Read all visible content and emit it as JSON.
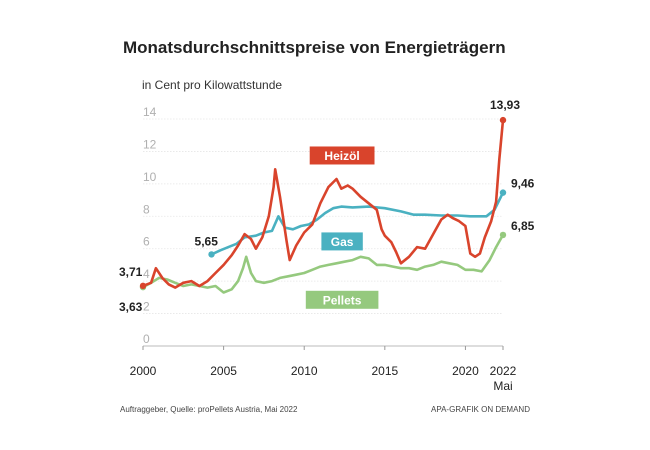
{
  "chart_data": {
    "type": "line",
    "title": "Monatsdurchschnittspreise von Energieträgern",
    "ylabel": "in Cent pro Kilowattstunde",
    "xlabel": "",
    "ylim": [
      0,
      14
    ],
    "yticks": [
      0,
      2,
      4,
      6,
      8,
      10,
      12,
      14
    ],
    "x_ticks": [
      "2000",
      "2005",
      "2010",
      "2015",
      "2020",
      "2022"
    ],
    "x_tick_values": [
      2000,
      2005,
      2010,
      2015,
      2020,
      2022.33
    ],
    "x_sublabel": "Mai",
    "xlim": [
      2000,
      2022.33
    ],
    "series": [
      {
        "name": "Heizöl",
        "color": "#d9442c",
        "points": [
          [
            2000,
            3.71
          ],
          [
            2000.5,
            3.9
          ],
          [
            2000.8,
            4.8
          ],
          [
            2001.2,
            4.2
          ],
          [
            2001.6,
            3.8
          ],
          [
            2002.0,
            3.6
          ],
          [
            2002.5,
            3.9
          ],
          [
            2003.0,
            4.0
          ],
          [
            2003.5,
            3.7
          ],
          [
            2004.0,
            4.0
          ],
          [
            2004.5,
            4.5
          ],
          [
            2005.0,
            5.0
          ],
          [
            2005.5,
            5.6
          ],
          [
            2005.9,
            6.2
          ],
          [
            2006.3,
            6.9
          ],
          [
            2006.7,
            6.6
          ],
          [
            2007.0,
            6.0
          ],
          [
            2007.4,
            6.7
          ],
          [
            2007.8,
            8.0
          ],
          [
            2008.1,
            9.8
          ],
          [
            2008.2,
            10.9
          ],
          [
            2008.5,
            9.2
          ],
          [
            2008.9,
            6.5
          ],
          [
            2009.1,
            5.3
          ],
          [
            2009.5,
            6.2
          ],
          [
            2010.0,
            7.0
          ],
          [
            2010.5,
            7.5
          ],
          [
            2011.0,
            8.8
          ],
          [
            2011.5,
            9.8
          ],
          [
            2012.0,
            10.3
          ],
          [
            2012.3,
            9.7
          ],
          [
            2012.7,
            9.9
          ],
          [
            2013.0,
            9.7
          ],
          [
            2013.5,
            9.2
          ],
          [
            2014.0,
            8.8
          ],
          [
            2014.5,
            8.4
          ],
          [
            2014.8,
            7.2
          ],
          [
            2015.0,
            6.8
          ],
          [
            2015.4,
            6.4
          ],
          [
            2015.7,
            5.8
          ],
          [
            2016.0,
            5.1
          ],
          [
            2016.5,
            5.5
          ],
          [
            2017.0,
            6.1
          ],
          [
            2017.5,
            6.0
          ],
          [
            2018.0,
            6.9
          ],
          [
            2018.5,
            7.8
          ],
          [
            2018.9,
            8.1
          ],
          [
            2019.2,
            7.9
          ],
          [
            2019.6,
            7.7
          ],
          [
            2020.0,
            7.4
          ],
          [
            2020.3,
            5.7
          ],
          [
            2020.6,
            5.5
          ],
          [
            2020.9,
            5.7
          ],
          [
            2021.2,
            6.7
          ],
          [
            2021.6,
            7.7
          ],
          [
            2021.9,
            8.9
          ],
          [
            2022.1,
            11.5
          ],
          [
            2022.33,
            13.93
          ]
        ],
        "annotations": [
          {
            "year": 2000,
            "value": 3.71,
            "text": "3,71"
          },
          {
            "year": 2022.33,
            "value": 13.93,
            "text": "13,93"
          }
        ]
      },
      {
        "name": "Gas",
        "color": "#4ab1c1",
        "points": [
          [
            2004.25,
            5.65
          ],
          [
            2004.8,
            5.9
          ],
          [
            2005.3,
            6.1
          ],
          [
            2005.8,
            6.3
          ],
          [
            2006.3,
            6.7
          ],
          [
            2007.0,
            6.8
          ],
          [
            2007.5,
            7.0
          ],
          [
            2008.0,
            7.1
          ],
          [
            2008.4,
            8.0
          ],
          [
            2008.8,
            7.3
          ],
          [
            2009.3,
            7.2
          ],
          [
            2009.8,
            7.4
          ],
          [
            2010.3,
            7.5
          ],
          [
            2010.8,
            7.8
          ],
          [
            2011.3,
            8.2
          ],
          [
            2011.8,
            8.5
          ],
          [
            2012.3,
            8.6
          ],
          [
            2013.0,
            8.55
          ],
          [
            2014.0,
            8.6
          ],
          [
            2015.0,
            8.5
          ],
          [
            2016.0,
            8.3
          ],
          [
            2016.8,
            8.1
          ],
          [
            2017.5,
            8.1
          ],
          [
            2018.5,
            8.05
          ],
          [
            2019.5,
            8.05
          ],
          [
            2020.3,
            8.0
          ],
          [
            2020.8,
            8.0
          ],
          [
            2021.3,
            8.0
          ],
          [
            2021.8,
            8.4
          ],
          [
            2022.33,
            9.46
          ]
        ],
        "annotations": [
          {
            "year": 2004.25,
            "value": 5.65,
            "text": "5,65"
          },
          {
            "year": 2022.33,
            "value": 9.46,
            "text": "9,46"
          }
        ]
      },
      {
        "name": "Pellets",
        "color": "#95c97e",
        "points": [
          [
            2000,
            3.63
          ],
          [
            2000.5,
            3.9
          ],
          [
            2001.0,
            4.2
          ],
          [
            2001.5,
            4.1
          ],
          [
            2002.0,
            3.9
          ],
          [
            2002.5,
            3.7
          ],
          [
            2003.0,
            3.8
          ],
          [
            2003.5,
            3.7
          ],
          [
            2004.0,
            3.6
          ],
          [
            2004.5,
            3.7
          ],
          [
            2005.0,
            3.3
          ],
          [
            2005.5,
            3.5
          ],
          [
            2005.9,
            4.0
          ],
          [
            2006.2,
            4.8
          ],
          [
            2006.4,
            5.5
          ],
          [
            2006.7,
            4.5
          ],
          [
            2007.0,
            4.0
          ],
          [
            2007.5,
            3.9
          ],
          [
            2008.0,
            4.0
          ],
          [
            2008.5,
            4.2
          ],
          [
            2009.0,
            4.3
          ],
          [
            2009.5,
            4.4
          ],
          [
            2010.0,
            4.5
          ],
          [
            2010.5,
            4.7
          ],
          [
            2011.0,
            4.9
          ],
          [
            2011.5,
            5.0
          ],
          [
            2012.0,
            5.1
          ],
          [
            2012.5,
            5.2
          ],
          [
            2013.0,
            5.3
          ],
          [
            2013.5,
            5.5
          ],
          [
            2014.0,
            5.4
          ],
          [
            2014.5,
            5.0
          ],
          [
            2015.0,
            5.0
          ],
          [
            2015.5,
            4.9
          ],
          [
            2016.0,
            4.8
          ],
          [
            2016.5,
            4.8
          ],
          [
            2017.0,
            4.7
          ],
          [
            2017.5,
            4.9
          ],
          [
            2018.0,
            5.0
          ],
          [
            2018.5,
            5.2
          ],
          [
            2019.0,
            5.1
          ],
          [
            2019.5,
            5.0
          ],
          [
            2020.0,
            4.7
          ],
          [
            2020.5,
            4.7
          ],
          [
            2021.0,
            4.6
          ],
          [
            2021.5,
            5.3
          ],
          [
            2021.9,
            6.1
          ],
          [
            2022.33,
            6.85
          ]
        ],
        "annotations": [
          {
            "year": 2000,
            "value": 3.63,
            "text": "3,63"
          },
          {
            "year": 2022.33,
            "value": 6.85,
            "text": "6,85"
          }
        ]
      }
    ],
    "legend_labels": [
      {
        "series": "Heizöl",
        "text": "Heizöl",
        "color": "#d9442c",
        "year": 2012.35,
        "value": 11.75
      },
      {
        "series": "Gas",
        "text": "Gas",
        "color": "#4ab1c1",
        "year": 2012.35,
        "value": 6.45
      },
      {
        "series": "Pellets",
        "text": "Pellets",
        "color": "#95c97e",
        "year": 2012.35,
        "value": 2.85
      }
    ]
  },
  "footer": {
    "source": "Auftraggeber, Quelle: proPellets Austria, Mai 2022",
    "credit": "APA-GRAFIK ON DEMAND"
  }
}
